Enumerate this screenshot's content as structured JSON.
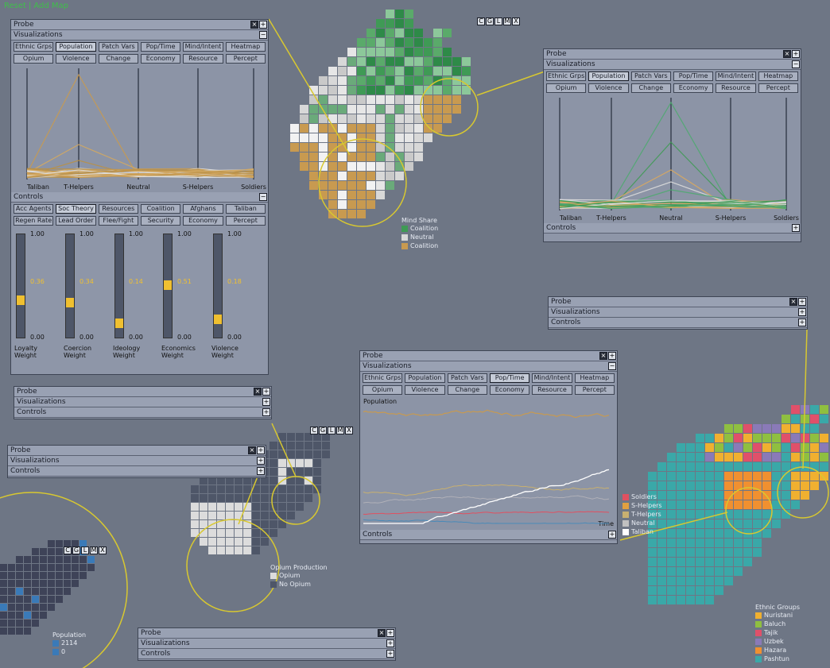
{
  "topbar": {
    "a": "Reset",
    "b": "Add Map"
  },
  "probe": "Probe",
  "visualizations": "Visualizations",
  "controls": "Controls",
  "viz_tabs": [
    "Ethnic Grps",
    "Population",
    "Patch Vars",
    "Pop/Time",
    "Mind/Intent",
    "Heatmap",
    "Opium",
    "Violence",
    "Change",
    "Economy",
    "Resource",
    "Percept"
  ],
  "map_btns": [
    "C",
    "G",
    "L",
    "M",
    "X"
  ],
  "pc_axes": [
    "Taliban",
    "T-Helpers",
    "Neutral",
    "S-Helpers",
    "Soldiers"
  ],
  "ctrl_tabs": [
    "Acc Agents",
    "Soc Theory",
    "Resources",
    "Coalition",
    "Afghans",
    "Taliban",
    "Regen Rate",
    "Lead Order",
    "Flee/Fight",
    "Security",
    "Economy",
    "Percept"
  ],
  "sliders": [
    {
      "label": "Loyalty\nWeight",
      "value": "0.36",
      "v": 0.36
    },
    {
      "label": "Coercion\nWeight",
      "value": "0.34",
      "v": 0.34
    },
    {
      "label": "Ideology\nWeight",
      "value": "0.14",
      "v": 0.14
    },
    {
      "label": "Economics\nWeight",
      "value": "0.51",
      "v": 0.51
    },
    {
      "label": "Violence\nWeight",
      "value": "0.18",
      "v": 0.18
    }
  ],
  "slider_max": "1.00",
  "slider_min": "0.00",
  "mind_share": {
    "title": "Mind Share",
    "items": [
      {
        "label": "Coalition",
        "color": "#3f9a55"
      },
      {
        "label": "Neutral",
        "color": "#d8d8d8"
      },
      {
        "label": "Coalition",
        "color": "#c89a50"
      }
    ]
  },
  "opium": {
    "title": "Opium Production",
    "items": [
      {
        "label": "Opium",
        "color": "#dcdcdc"
      },
      {
        "label": "No Opium",
        "color": "#4e5668"
      }
    ]
  },
  "pop_legend": {
    "title": "Population",
    "items": [
      {
        "label": "2114",
        "color": "#3a7ab8"
      },
      {
        "label": "0",
        "color": "#3a7ab8"
      }
    ]
  },
  "ethnic": {
    "title": "Ethnic Groups",
    "items": [
      {
        "label": "Nuristani",
        "color": "#f0b030"
      },
      {
        "label": "Baluch",
        "color": "#8fbf40"
      },
      {
        "label": "Tajik",
        "color": "#e0506a"
      },
      {
        "label": "Uzbek",
        "color": "#8a7ab8"
      },
      {
        "label": "Hazara",
        "color": "#f09030"
      },
      {
        "label": "Pashtun",
        "color": "#3aa8a8"
      }
    ]
  },
  "pop_chart": {
    "title": "Population",
    "xlabel": "Time",
    "legend": [
      {
        "label": "Soldiers",
        "color": "#e05060"
      },
      {
        "label": "S-Helpers",
        "color": "#e0a040"
      },
      {
        "label": "T-Helpers",
        "color": "#c8b070"
      },
      {
        "label": "Neutral",
        "color": "#c0c0c0"
      },
      {
        "label": "Taliban",
        "color": "#ffffff"
      }
    ]
  }
}
